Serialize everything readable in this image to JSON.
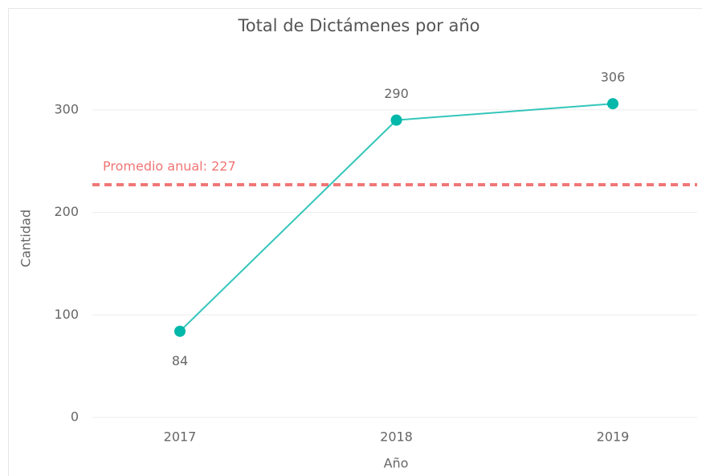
{
  "chart_data": {
    "type": "line",
    "title": "Total de Dictámenes por año",
    "x_label": "Año",
    "y_label": "Cantidad",
    "categories": [
      "2017",
      "2018",
      "2019"
    ],
    "series": [
      {
        "name": "Cantidad",
        "color": "#01b8aa",
        "values": [
          84,
          290,
          306
        ]
      }
    ],
    "ylim": [
      0,
      350
    ],
    "yticks": [
      0,
      100,
      200,
      300
    ],
    "grid": true,
    "reference_line": {
      "value": 227,
      "label": "Promedio anual: 227",
      "color": "#f07575"
    }
  }
}
